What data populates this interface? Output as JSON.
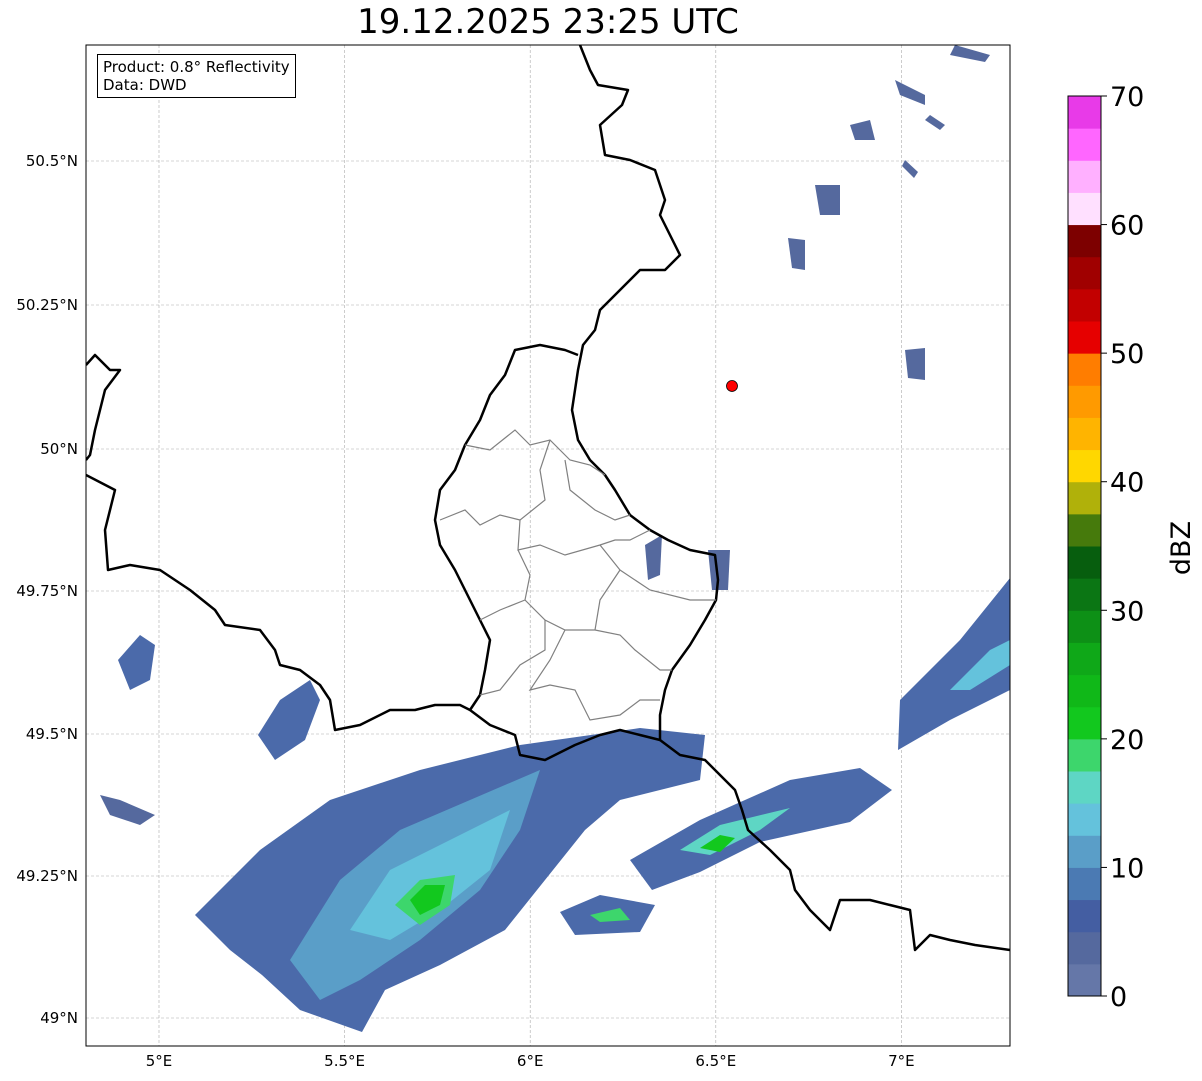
{
  "title": "19.12.2025 23:25 UTC",
  "info": {
    "product": "Product: 0.8° Reflectivity",
    "source": "Data: DWD"
  },
  "axes": {
    "lon_ticks": [
      {
        "value": 5,
        "label": "5°E"
      },
      {
        "value": 5.5,
        "label": "5.5°E"
      },
      {
        "value": 6,
        "label": "6°E"
      },
      {
        "value": 6.5,
        "label": "6.5°E"
      },
      {
        "value": 7,
        "label": "7°E"
      }
    ],
    "lat_ticks": [
      {
        "value": 50.5,
        "label": "50.5°N"
      },
      {
        "value": 50.25,
        "label": "50.25°N"
      },
      {
        "value": 50,
        "label": "50°N"
      },
      {
        "value": 49.75,
        "label": "49.75°N"
      },
      {
        "value": 49.5,
        "label": "49.5°N"
      },
      {
        "value": 49.25,
        "label": "49.25°N"
      },
      {
        "value": 49,
        "label": "49°N"
      }
    ]
  },
  "marker": {
    "lon": 6.55,
    "lat": 50.11,
    "color": "#ff0000"
  },
  "colorbar": {
    "label": "dBZ",
    "min": 0,
    "max": 70,
    "step": 2.5,
    "ticks": [
      "0",
      "10",
      "20",
      "30",
      "40",
      "50",
      "60",
      "70"
    ],
    "colors": [
      "#6577a8",
      "#55699e",
      "#445ea2",
      "#4b7ab3",
      "#5a9ec8",
      "#64c2dc",
      "#5ed6c4",
      "#3dd66c",
      "#12c81e",
      "#10b818",
      "#0fa818",
      "#0d9016",
      "#0b7614",
      "#075e0e",
      "#467a0c",
      "#b0b10a",
      "#ffd700",
      "#ffb400",
      "#ff9a00",
      "#ff7d00",
      "#e60000",
      "#c20000",
      "#a00000",
      "#7d0000",
      "#ffe0ff",
      "#ffb0ff",
      "#ff66ff",
      "#e83ae8"
    ]
  }
}
